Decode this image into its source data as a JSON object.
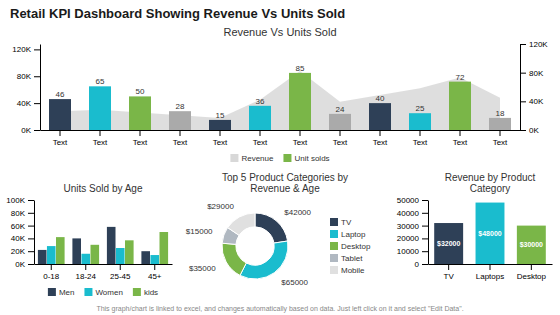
{
  "title": "Retail KPI Dashboard Showing Revenue Vs Units Sold",
  "annotations": [
    "This graph/chart is linked to excel, and changes automatically based on data.  Just left click on it and select \"Edit Data\"."
  ],
  "chart_data": [
    {
      "type": "bar",
      "title": "Revenue Vs Units Sold",
      "categories": [
        "Text",
        "Text",
        "Text",
        "Text",
        "Text",
        "Text",
        "Text",
        "Text",
        "Text",
        "Text",
        "Text",
        "Text"
      ],
      "series": [
        {
          "name": "Revenue",
          "type": "area",
          "color": "#d8d8d8",
          "values": [
            28,
            30,
            26,
            22,
            18,
            45,
            88,
            42,
            52,
            62,
            78,
            48
          ]
        },
        {
          "name": "Unit solds",
          "type": "bar",
          "color": "#7ab648",
          "colors": [
            "#2e4057",
            "#1abcce",
            "#7ab648",
            "#aaaaaa",
            "#2e4057",
            "#1abcce",
            "#7ab648",
            "#aaaaaa",
            "#2e4057",
            "#1abcce",
            "#7ab648",
            "#aaaaaa"
          ],
          "values": [
            46,
            65,
            50,
            28,
            15,
            36,
            85,
            24,
            40,
            25,
            72,
            18
          ],
          "data_labels": true
        }
      ],
      "ylim": [
        0,
        128
      ],
      "yticks": [
        {
          "value": 0,
          "label": "0K"
        },
        {
          "value": 40,
          "label": "40K"
        },
        {
          "value": 80,
          "label": "80K"
        },
        {
          "value": 120,
          "label": "120K"
        }
      ],
      "y2lim": [
        0,
        120
      ],
      "y2ticks": [
        {
          "value": 0,
          "label": "0K"
        },
        {
          "value": 40,
          "label": "40K"
        },
        {
          "value": 80,
          "label": "80K"
        },
        {
          "value": 120,
          "label": "120K"
        }
      ],
      "legend": "bottom",
      "grid": false
    },
    {
      "type": "bar",
      "title": "Units Sold by Age",
      "categories": [
        "0-18",
        "18-24",
        "25-45",
        "45+"
      ],
      "series": [
        {
          "name": "Men",
          "color": "#2e4057",
          "values": [
            22,
            40,
            58,
            20
          ]
        },
        {
          "name": "Women",
          "color": "#1abcce",
          "values": [
            28,
            16,
            25,
            14
          ]
        },
        {
          "name": "kids",
          "color": "#7ab648",
          "values": [
            42,
            30,
            37,
            50
          ]
        }
      ],
      "ylim": [
        0,
        100
      ],
      "yticks": [
        {
          "value": 0,
          "label": "0K"
        },
        {
          "value": 20,
          "label": "20K"
        },
        {
          "value": 40,
          "label": "40K"
        },
        {
          "value": 60,
          "label": "60K"
        },
        {
          "value": 80,
          "label": "80K"
        },
        {
          "value": 100,
          "label": "100K"
        }
      ],
      "legend": "bottom",
      "grid": false
    },
    {
      "type": "donut",
      "title": "Top 5 Product Categories by\nRevenue & Age",
      "categories": [
        "TV",
        "Laptop",
        "Desktop",
        "Tablet",
        "Mobile"
      ],
      "values": [
        42000,
        65000,
        35000,
        15000,
        29000
      ],
      "colors": [
        "#2e4057",
        "#1abcce",
        "#7ab648",
        "#b0b8c1",
        "#e0e0e0"
      ],
      "value_labels": [
        "$42000",
        "$65000",
        "$35000",
        "$15000",
        "$29000"
      ],
      "data_labels": true,
      "legend": "right"
    },
    {
      "type": "bar",
      "title": "Revenue by Product\nCategory",
      "categories": [
        "TV",
        "Laptops",
        "Desktop"
      ],
      "values": [
        32000,
        48000,
        30000
      ],
      "colors": [
        "#2e4057",
        "#1abcce",
        "#7ab648"
      ],
      "value_labels": [
        "$32000",
        "$48000",
        "$30000"
      ],
      "data_labels": true,
      "ylim": [
        0,
        50000
      ],
      "yticks": [
        0,
        10000,
        20000,
        30000,
        40000,
        50000
      ],
      "grid": false
    }
  ]
}
